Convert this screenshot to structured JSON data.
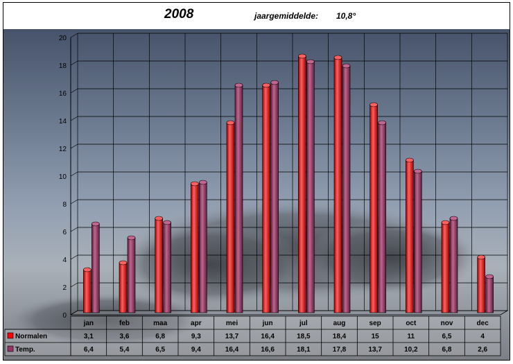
{
  "header": {
    "year": "2008",
    "label": "jaargemiddelde:",
    "value": "10,8°"
  },
  "colors": {
    "normalen": "#ff0000",
    "temp": "#993366"
  },
  "chart_data": {
    "type": "bar",
    "categories": [
      "jan",
      "feb",
      "maa",
      "apr",
      "mei",
      "jun",
      "jul",
      "aug",
      "sep",
      "oct",
      "nov",
      "dec"
    ],
    "series": [
      {
        "name": "Normalen",
        "values": [
          3.1,
          3.6,
          6.8,
          9.3,
          13.7,
          16.4,
          18.5,
          18.4,
          15,
          11,
          6.5,
          4
        ],
        "labels": [
          "3,1",
          "3,6",
          "6,8",
          "9,3",
          "13,7",
          "16,4",
          "18,5",
          "18,4",
          "15",
          "11",
          "6,5",
          "4"
        ]
      },
      {
        "name": "Temp.",
        "values": [
          6.4,
          5.4,
          6.5,
          9.4,
          16.4,
          16.6,
          18.1,
          17.8,
          13.7,
          10.2,
          6.8,
          2.6
        ],
        "labels": [
          "6,4",
          "5,4",
          "6,5",
          "9,4",
          "16,4",
          "16,6",
          "18,1",
          "17,8",
          "13,7",
          "10,2",
          "6,8",
          "2,6"
        ]
      }
    ],
    "ylim": [
      0,
      20
    ],
    "yticks": [
      0,
      2,
      4,
      6,
      8,
      10,
      12,
      14,
      16,
      18,
      20
    ],
    "grid": true,
    "data_table": true
  }
}
